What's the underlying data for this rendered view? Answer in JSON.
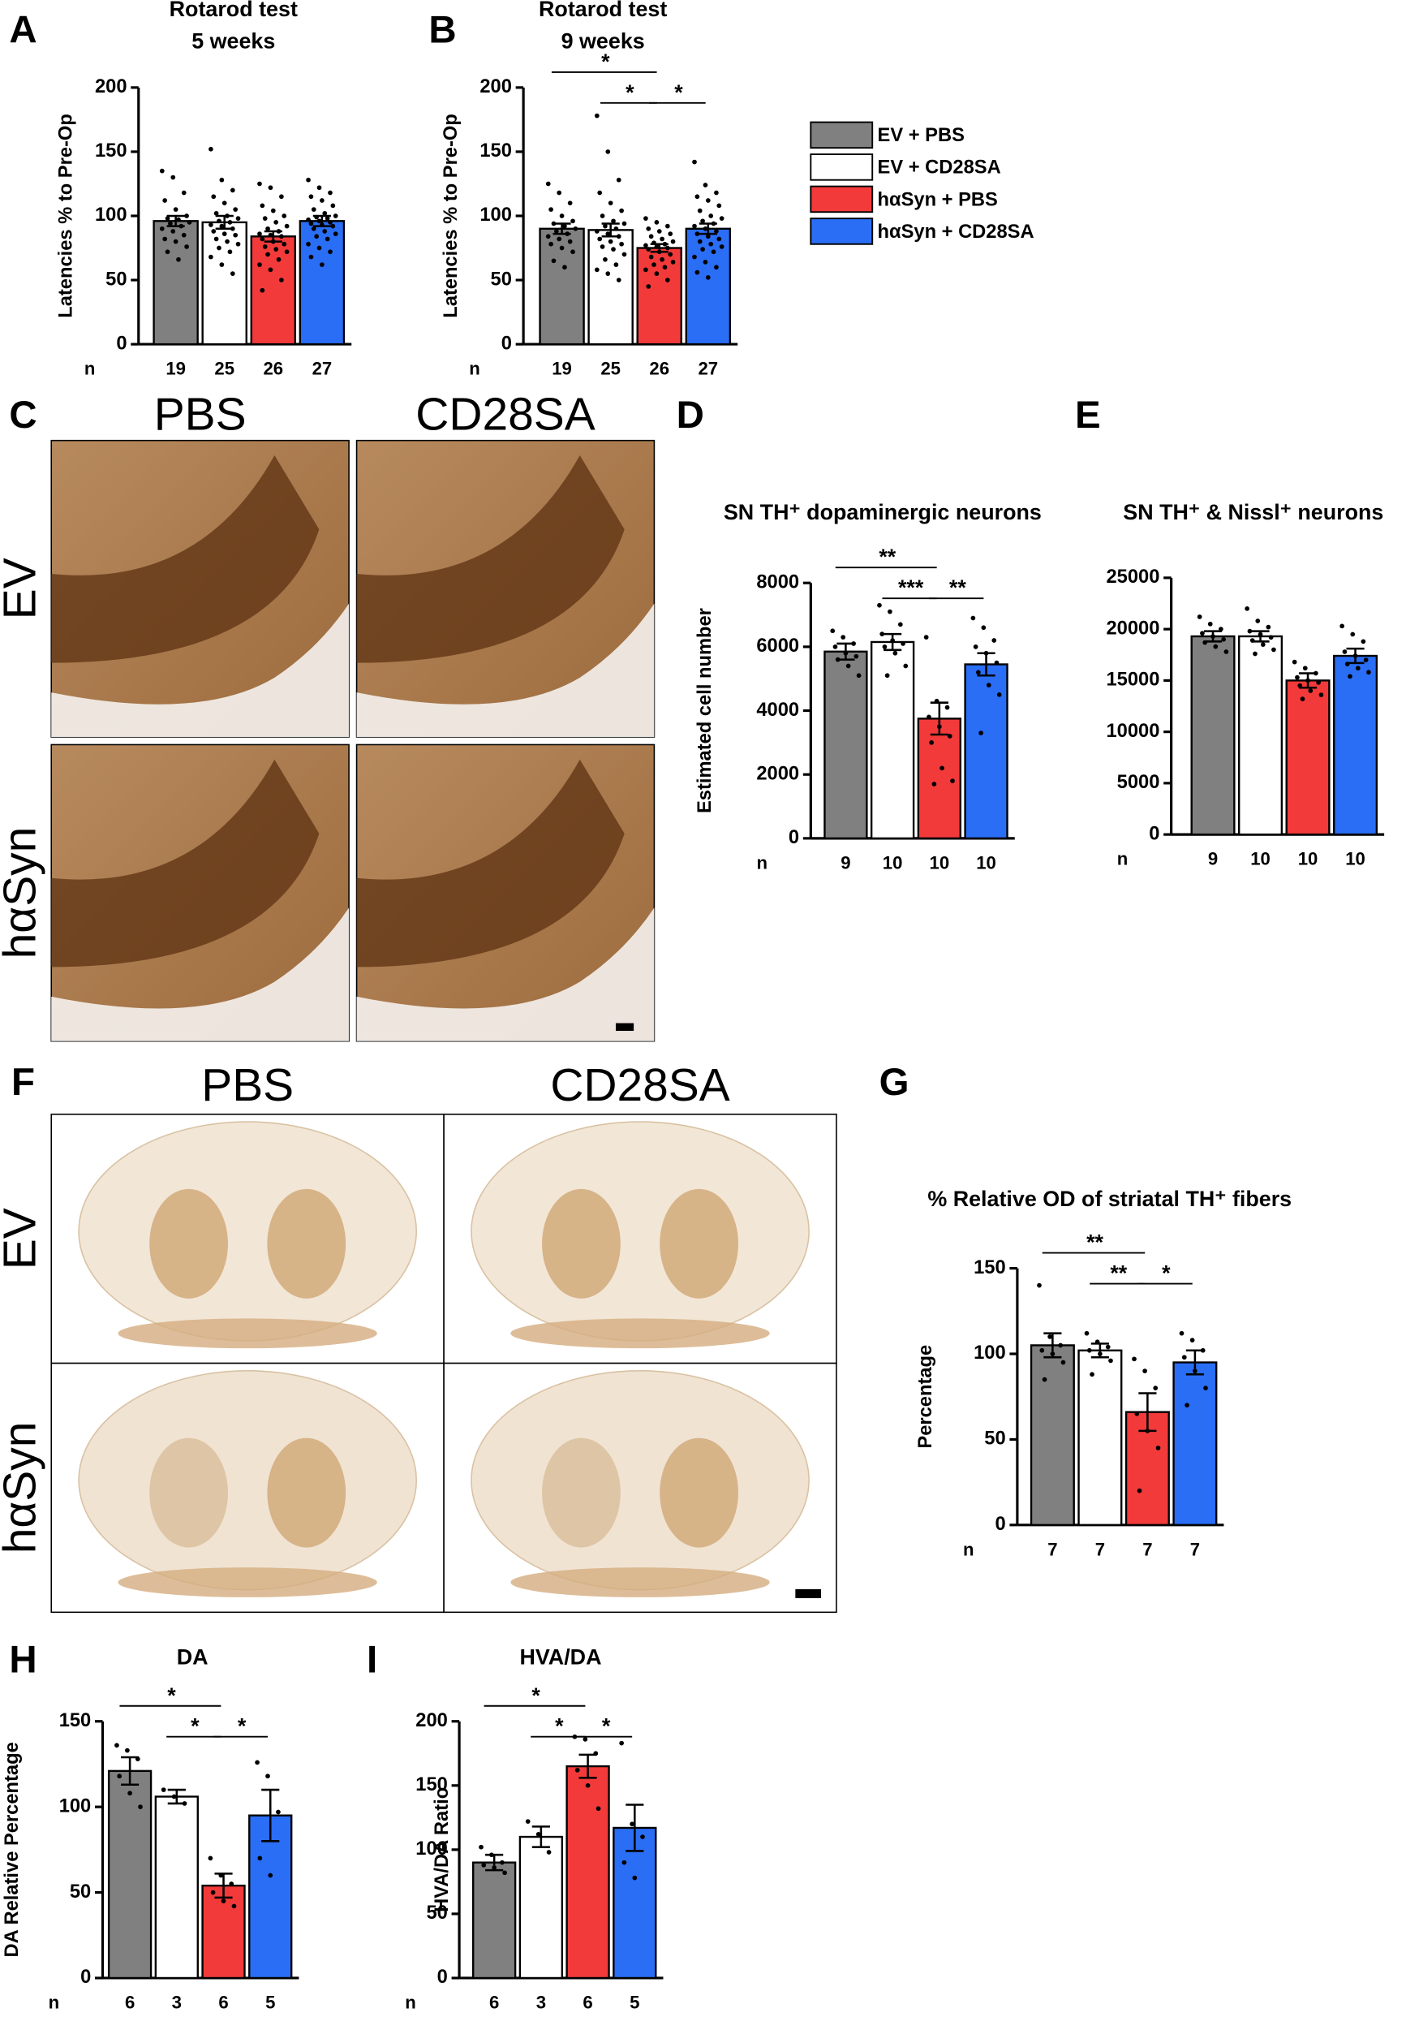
{
  "legend": [
    {
      "name": "EV + PBS",
      "color": "#808080"
    },
    {
      "name": "EV + CD28SA",
      "color": "#ffffff"
    },
    {
      "name": "hαSyn + PBS",
      "color": "#f23a3a"
    },
    {
      "name": "hαSyn + CD28SA",
      "color": "#2a6ef5"
    }
  ],
  "micrographs": [
    {
      "panel": "C",
      "columns": [
        "PBS",
        "CD28SA"
      ],
      "rows": [
        "EV",
        "hαSyn"
      ]
    },
    {
      "panel": "F",
      "columns": [
        "PBS",
        "CD28SA"
      ],
      "rows": [
        "EV",
        "hαSyn"
      ]
    }
  ],
  "chart_data": [
    {
      "type": "bar",
      "panel": "A",
      "title": "Rotarod test",
      "subtitle": "5 weeks",
      "ylabel": "Latencies % to Pre-Op",
      "n_label": "n",
      "n": [
        19,
        25,
        26,
        27
      ],
      "values": [
        96,
        95,
        84,
        96
      ],
      "errors": [
        4,
        5,
        4,
        4
      ],
      "points": [
        [
          135,
          130,
          118,
          112,
          105,
          100,
          98,
          97,
          95,
          94,
          92,
          90,
          88,
          85,
          82,
          80,
          76,
          72,
          66
        ],
        [
          152,
          128,
          120,
          115,
          110,
          105,
          102,
          100,
          98,
          96,
          95,
          93,
          92,
          90,
          88,
          86,
          85,
          82,
          80,
          78,
          75,
          72,
          68,
          62,
          55
        ],
        [
          125,
          122,
          115,
          108,
          104,
          100,
          98,
          95,
          92,
          90,
          88,
          86,
          85,
          84,
          82,
          80,
          78,
          76,
          74,
          72,
          70,
          66,
          62,
          58,
          50,
          42
        ],
        [
          128,
          122,
          118,
          115,
          112,
          108,
          105,
          102,
          100,
          99,
          98,
          97,
          96,
          95,
          94,
          93,
          92,
          90,
          88,
          86,
          84,
          82,
          78,
          75,
          72,
          68,
          62
        ]
      ],
      "ylim": [
        0,
        200
      ],
      "yticks": [
        0,
        50,
        100,
        150,
        200
      ],
      "significance": []
    },
    {
      "type": "bar",
      "panel": "B",
      "title": "Rotarod test",
      "subtitle": "9 weeks",
      "ylabel": "Latencies % to Pre-Op",
      "n_label": "n",
      "n": [
        19,
        25,
        26,
        27
      ],
      "values": [
        90,
        89,
        75,
        90
      ],
      "errors": [
        4,
        5,
        3,
        4
      ],
      "points": [
        [
          125,
          118,
          110,
          105,
          100,
          96,
          94,
          92,
          90,
          88,
          86,
          84,
          82,
          80,
          78,
          75,
          72,
          65,
          60
        ],
        [
          178,
          150,
          128,
          118,
          110,
          104,
          100,
          96,
          94,
          92,
          90,
          88,
          86,
          84,
          82,
          80,
          78,
          76,
          74,
          70,
          66,
          62,
          58,
          55,
          50
        ],
        [
          98,
          95,
          92,
          90,
          88,
          86,
          84,
          82,
          80,
          79,
          78,
          77,
          76,
          75,
          74,
          72,
          70,
          68,
          66,
          64,
          62,
          60,
          58,
          55,
          50,
          45
        ],
        [
          142,
          124,
          118,
          115,
          112,
          108,
          104,
          100,
          98,
          96,
          94,
          92,
          90,
          88,
          86,
          84,
          82,
          80,
          78,
          76,
          74,
          72,
          68,
          64,
          60,
          56,
          52
        ]
      ],
      "ylim": [
        0,
        200
      ],
      "yticks": [
        0,
        50,
        100,
        150,
        200
      ],
      "significance": [
        {
          "label": "*",
          "from": 0,
          "to": 2
        },
        {
          "label": "*",
          "from": 1,
          "to": 2
        },
        {
          "label": "*",
          "from": 2,
          "to": 3
        }
      ]
    },
    {
      "type": "bar",
      "panel": "D",
      "title": "SN TH⁺ dopaminergic neurons",
      "ylabel": "Estimated cell number",
      "n_label": "n",
      "n": [
        9,
        10,
        10,
        10
      ],
      "values": [
        5850,
        6150,
        3750,
        5450
      ],
      "errors": [
        250,
        250,
        500,
        350
      ],
      "points": [
        [
          6500,
          6300,
          6100,
          6000,
          5800,
          5700,
          5600,
          5400,
          5100
        ],
        [
          7300,
          7100,
          6700,
          6400,
          6200,
          6100,
          6000,
          5800,
          5400,
          5100
        ],
        [
          6300,
          4300,
          4100,
          3800,
          3500,
          3200,
          3000,
          2200,
          1800,
          1700
        ],
        [
          6900,
          6600,
          6200,
          6000,
          5800,
          5500,
          5200,
          4800,
          4500,
          3300
        ]
      ],
      "ylim": [
        0,
        8000
      ],
      "yticks": [
        0,
        2000,
        4000,
        6000,
        8000
      ],
      "significance": [
        {
          "label": "**",
          "from": 0,
          "to": 2
        },
        {
          "label": "***",
          "from": 1,
          "to": 2
        },
        {
          "label": "**",
          "from": 2,
          "to": 3
        }
      ]
    },
    {
      "type": "bar",
      "panel": "E",
      "title": "SN TH⁺ & Nissl⁺ neurons",
      "n_label": "n",
      "n": [
        9,
        10,
        10,
        10
      ],
      "values": [
        19300,
        19300,
        15000,
        17400
      ],
      "errors": [
        500,
        500,
        700,
        700
      ],
      "points": [
        [
          21200,
          20500,
          20000,
          19600,
          19300,
          19000,
          18700,
          18300,
          17800
        ],
        [
          22000,
          20800,
          20200,
          19800,
          19500,
          19200,
          18900,
          18500,
          18000,
          17600
        ],
        [
          16800,
          16200,
          15700,
          15300,
          15000,
          14800,
          14500,
          14000,
          13600,
          13200
        ],
        [
          20300,
          19500,
          18800,
          17800,
          17400,
          17000,
          16600,
          16200,
          15800,
          15400
        ]
      ],
      "ylim": [
        0,
        25000
      ],
      "yticks": [
        0,
        5000,
        10000,
        15000,
        20000,
        25000
      ],
      "significance": []
    },
    {
      "type": "bar",
      "panel": "G",
      "title": "% Relative OD of striatal TH⁺ fibers",
      "ylabel": "Percentage",
      "n_label": "n",
      "n": [
        7,
        7,
        7,
        7
      ],
      "values": [
        105,
        102,
        66,
        95
      ],
      "errors": [
        7,
        4,
        11,
        7
      ],
      "points": [
        [
          140,
          110,
          105,
          102,
          100,
          95,
          85
        ],
        [
          112,
          107,
          104,
          102,
          100,
          96,
          88
        ],
        [
          97,
          90,
          80,
          65,
          55,
          45,
          20
        ],
        [
          112,
          108,
          102,
          98,
          90,
          80,
          70
        ]
      ],
      "ylim": [
        0,
        150
      ],
      "yticks": [
        0,
        50,
        100,
        150
      ],
      "significance": [
        {
          "label": "**",
          "from": 0,
          "to": 2
        },
        {
          "label": "**",
          "from": 1,
          "to": 2
        },
        {
          "label": "*",
          "from": 2,
          "to": 3
        }
      ]
    },
    {
      "type": "bar",
      "panel": "H",
      "title": "DA",
      "ylabel": "DA Relative Percentage",
      "n_label": "n",
      "n": [
        6,
        3,
        6,
        5
      ],
      "values": [
        121,
        106,
        54,
        95
      ],
      "errors": [
        8,
        4,
        7,
        15
      ],
      "points": [
        [
          136,
          133,
          128,
          118,
          108,
          100
        ],
        [
          110,
          106,
          102
        ],
        [
          70,
          60,
          55,
          50,
          45,
          42
        ],
        [
          126,
          118,
          97,
          70,
          60
        ]
      ],
      "ylim": [
        0,
        150
      ],
      "yticks": [
        0,
        50,
        100,
        150
      ],
      "significance": [
        {
          "label": "*",
          "from": 0,
          "to": 2
        },
        {
          "label": "*",
          "from": 1,
          "to": 2
        },
        {
          "label": "*",
          "from": 2,
          "to": 3
        }
      ]
    },
    {
      "type": "bar",
      "panel": "I",
      "title": "HVA/DA",
      "ylabel": "HVA/DA Ratio",
      "n_label": "n",
      "n": [
        6,
        3,
        6,
        5
      ],
      "values": [
        90,
        110,
        165,
        117
      ],
      "errors": [
        6,
        8,
        9,
        18
      ],
      "points": [
        [
          102,
          96,
          90,
          88,
          86,
          82
        ],
        [
          122,
          112,
          98
        ],
        [
          188,
          186,
          175,
          162,
          150,
          132
        ],
        [
          183,
          120,
          110,
          90,
          78
        ]
      ],
      "ylim": [
        0,
        200
      ],
      "yticks": [
        0,
        50,
        100,
        150,
        200
      ],
      "significance": [
        {
          "label": "*",
          "from": 0,
          "to": 2
        },
        {
          "label": "*",
          "from": 1,
          "to": 2
        },
        {
          "label": "*",
          "from": 2,
          "to": 3
        }
      ]
    }
  ]
}
